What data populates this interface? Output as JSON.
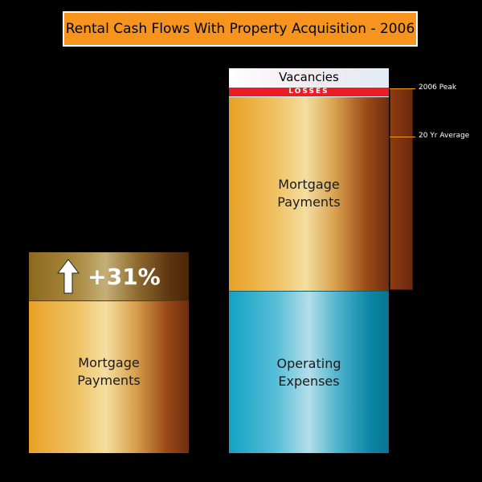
{
  "title": "Rental Cash Flows With Property Acquisition - 2006",
  "left_column": {
    "increase_label": "+31%",
    "block_line1": "Mortgage",
    "block_line2": "Payments"
  },
  "right_column": {
    "vacancies": "Vacancies",
    "losses": "LOSSES",
    "mortgage_line1": "Mortgage",
    "mortgage_line2": "Payments",
    "operating_line1": "Operating",
    "operating_line2": "Expenses"
  },
  "markers": {
    "peak": "2006 Peak",
    "average": "20 Yr  Average"
  },
  "colors": {
    "title_bg": "#f7941d",
    "losses": "#ee1c24",
    "mortgage": "#e8a126",
    "operating": "#13a1c4"
  }
}
